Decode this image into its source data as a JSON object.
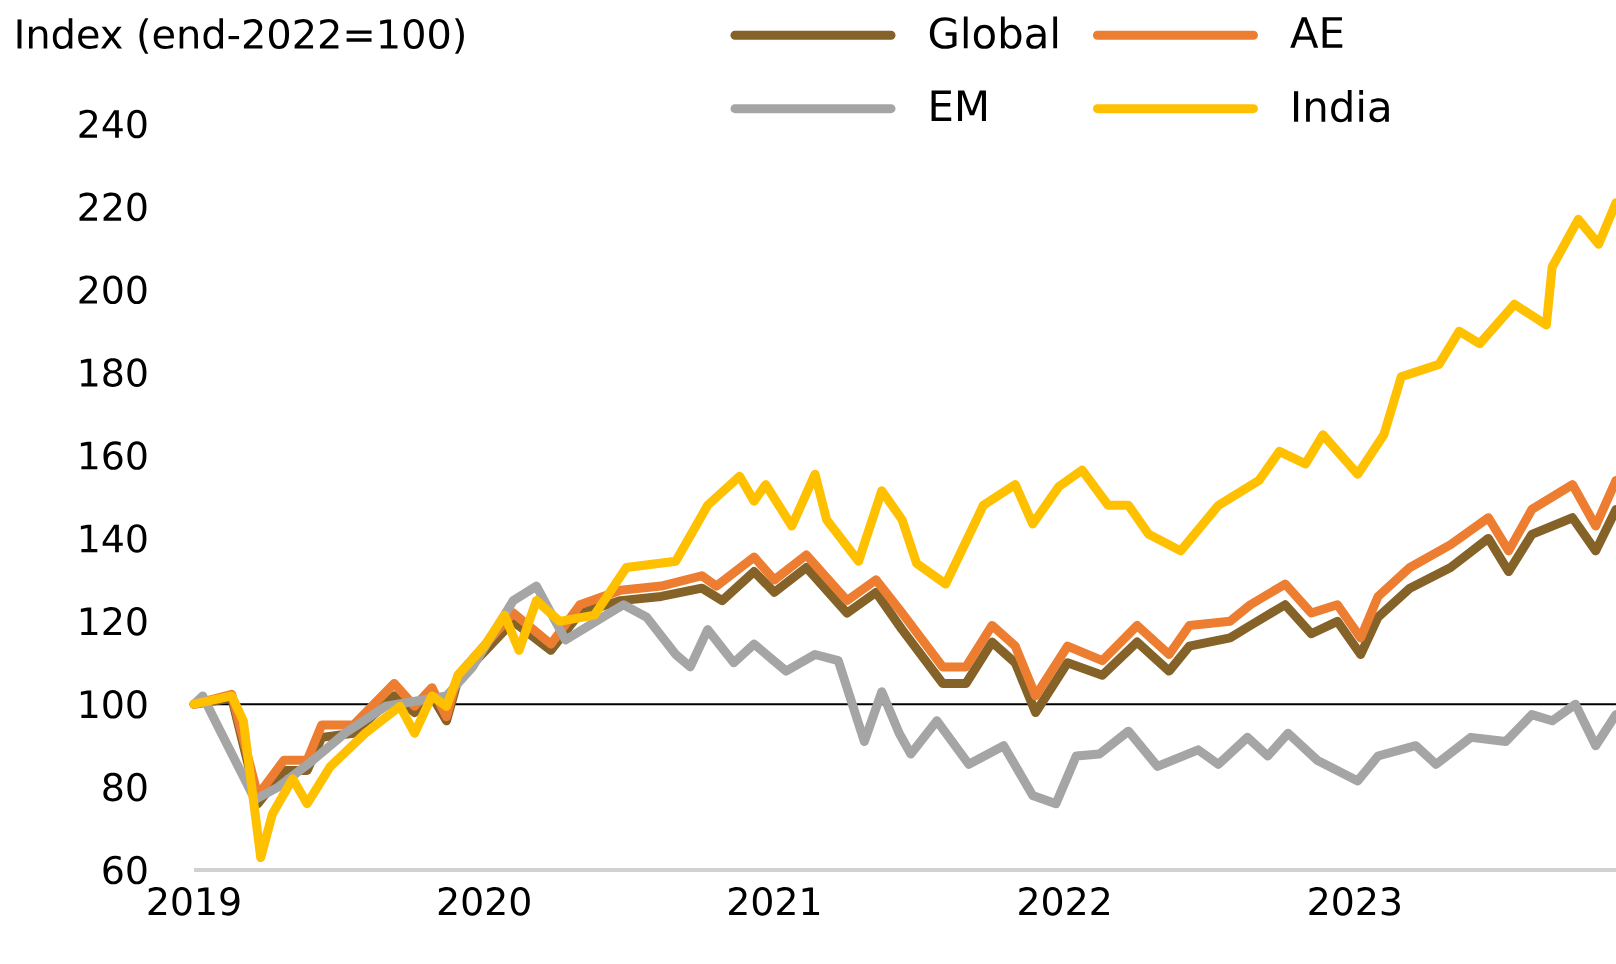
{
  "chart_data": {
    "type": "line",
    "ylabel": "Index (end-2022=100)",
    "xlim": [
      2019,
      2023.9
    ],
    "xticks": [
      2019,
      2020,
      2021,
      2022,
      2023
    ],
    "ylim": [
      60,
      240
    ],
    "yticks": [
      60,
      80,
      100,
      120,
      140,
      160,
      180,
      200,
      220,
      240
    ],
    "legend": "top",
    "grid": false,
    "ref_lines": [
      {
        "axis": "y",
        "value": 100,
        "color": "#000000"
      }
    ],
    "series": [
      {
        "name": "Global",
        "color": "#846228",
        "x": [
          2019,
          2019.13,
          2019.22,
          2019.31,
          2019.39,
          2019.44,
          2019.55,
          2019.69,
          2019.76,
          2019.82,
          2019.87,
          2019.91,
          2020.1,
          2020.23,
          2020.33,
          2020.47,
          2020.61,
          2020.75,
          2020.82,
          2020.93,
          2021.0,
          2021.11,
          2021.25,
          2021.35,
          2021.44,
          2021.58,
          2021.66,
          2021.75,
          2021.83,
          2021.9,
          2022.01,
          2022.13,
          2022.25,
          2022.36,
          2022.43,
          2022.57,
          2022.64,
          2022.76,
          2022.85,
          2022.94,
          2023.02,
          2023.08,
          2023.19,
          2023.33,
          2023.46,
          2023.53,
          2023.61,
          2023.75,
          2023.83,
          2023.9
        ],
        "values": [
          100,
          101.5,
          76,
          84,
          84,
          92,
          93,
          102,
          98,
          102,
          96,
          106,
          120,
          113,
          122,
          125,
          126,
          128,
          125,
          132,
          127,
          133,
          122,
          127,
          118,
          105,
          105,
          115,
          110,
          98,
          110,
          107,
          115,
          108,
          114,
          116,
          119,
          124,
          117,
          120,
          112,
          121,
          128,
          133,
          140,
          132,
          141,
          145,
          137,
          147
        ]
      },
      {
        "name": "AE",
        "color": "#ED7D31",
        "x": [
          2019,
          2019.13,
          2019.22,
          2019.31,
          2019.39,
          2019.44,
          2019.55,
          2019.69,
          2019.76,
          2019.82,
          2019.87,
          2019.91,
          2020.1,
          2020.23,
          2020.33,
          2020.47,
          2020.61,
          2020.75,
          2020.8,
          2020.93,
          2021.0,
          2021.11,
          2021.25,
          2021.35,
          2021.44,
          2021.58,
          2021.66,
          2021.75,
          2021.83,
          2021.9,
          2022.01,
          2022.13,
          2022.25,
          2022.36,
          2022.43,
          2022.57,
          2022.64,
          2022.76,
          2022.85,
          2022.94,
          2023.02,
          2023.08,
          2023.19,
          2023.33,
          2023.46,
          2023.53,
          2023.61,
          2023.75,
          2023.83,
          2023.9
        ],
        "values": [
          100,
          102.4,
          78,
          86.5,
          86.5,
          95,
          95,
          105,
          99.5,
          104,
          97,
          107,
          122,
          114.5,
          124,
          127.5,
          128.5,
          131,
          128.5,
          135.5,
          130,
          136,
          125,
          130,
          122,
          109,
          109,
          119,
          114,
          102,
          114,
          110.5,
          119,
          112,
          119,
          120,
          124,
          129,
          122,
          124,
          116,
          126,
          133,
          138.5,
          145,
          137,
          147,
          153,
          143,
          154
        ]
      },
      {
        "name": "EM",
        "color": "#A5A5A5",
        "x": [
          2019,
          2019.03,
          2019.08,
          2019.21,
          2019.29,
          2019.41,
          2019.52,
          2019.66,
          2019.87,
          2019.96,
          2020.1,
          2020.18,
          2020.28,
          2020.42,
          2020.48,
          2020.56,
          2020.66,
          2020.71,
          2020.77,
          2020.86,
          2020.93,
          2021.04,
          2021.14,
          2021.22,
          2021.31,
          2021.37,
          2021.43,
          2021.47,
          2021.56,
          2021.67,
          2021.79,
          2021.89,
          2021.97,
          2022.04,
          2022.12,
          2022.22,
          2022.32,
          2022.46,
          2022.53,
          2022.63,
          2022.7,
          2022.77,
          2022.87,
          2023.01,
          2023.08,
          2023.21,
          2023.28,
          2023.4,
          2023.52,
          2023.61,
          2023.68,
          2023.76,
          2023.83,
          2023.9
        ],
        "values": [
          100,
          102,
          95,
          77,
          80,
          86.5,
          93,
          99.5,
          102,
          109,
          125,
          128.5,
          115.5,
          121.5,
          124,
          121,
          112,
          109,
          118,
          110,
          114.5,
          108,
          112,
          110.5,
          91,
          103,
          93,
          88,
          96,
          85.5,
          90,
          78,
          76,
          87.5,
          88,
          93.5,
          85,
          89,
          85.5,
          92,
          87.5,
          93,
          86.5,
          81.5,
          87.5,
          90,
          85.5,
          92,
          91,
          97.5,
          96,
          100,
          90,
          97.5
        ]
      },
      {
        "name": "India",
        "color": "#FFC000",
        "x": [
          2019,
          2019.13,
          2019.17,
          2019.23,
          2019.27,
          2019.34,
          2019.39,
          2019.47,
          2019.59,
          2019.71,
          2019.76,
          2019.82,
          2019.87,
          2019.91,
          2020.0,
          2020.07,
          2020.12,
          2020.18,
          2020.26,
          2020.38,
          2020.49,
          2020.66,
          2020.77,
          2020.88,
          2020.93,
          2020.97,
          2021.06,
          2021.14,
          2021.18,
          2021.29,
          2021.37,
          2021.44,
          2021.49,
          2021.59,
          2021.72,
          2021.83,
          2021.89,
          2021.98,
          2022.06,
          2022.15,
          2022.22,
          2022.29,
          2022.4,
          2022.53,
          2022.67,
          2022.74,
          2022.83,
          2022.89,
          2023.01,
          2023.1,
          2023.16,
          2023.29,
          2023.36,
          2023.43,
          2023.55,
          2023.66,
          2023.68,
          2023.77,
          2023.84,
          2023.9
        ],
        "values": [
          100,
          102,
          96,
          63,
          73.5,
          82,
          76,
          85,
          93,
          99.5,
          93,
          102,
          99.5,
          107,
          114,
          121.5,
          113,
          125,
          120,
          121.5,
          133,
          134.5,
          148,
          155,
          149,
          153,
          143,
          155.5,
          144.5,
          134.5,
          151.5,
          144.5,
          134,
          129,
          148,
          153,
          143.5,
          152.5,
          156.5,
          148,
          148,
          141,
          137,
          148,
          154,
          161,
          158,
          165,
          155.5,
          165,
          179,
          182,
          190,
          187,
          196.5,
          191.5,
          205.5,
          217,
          211,
          221
        ]
      }
    ]
  }
}
